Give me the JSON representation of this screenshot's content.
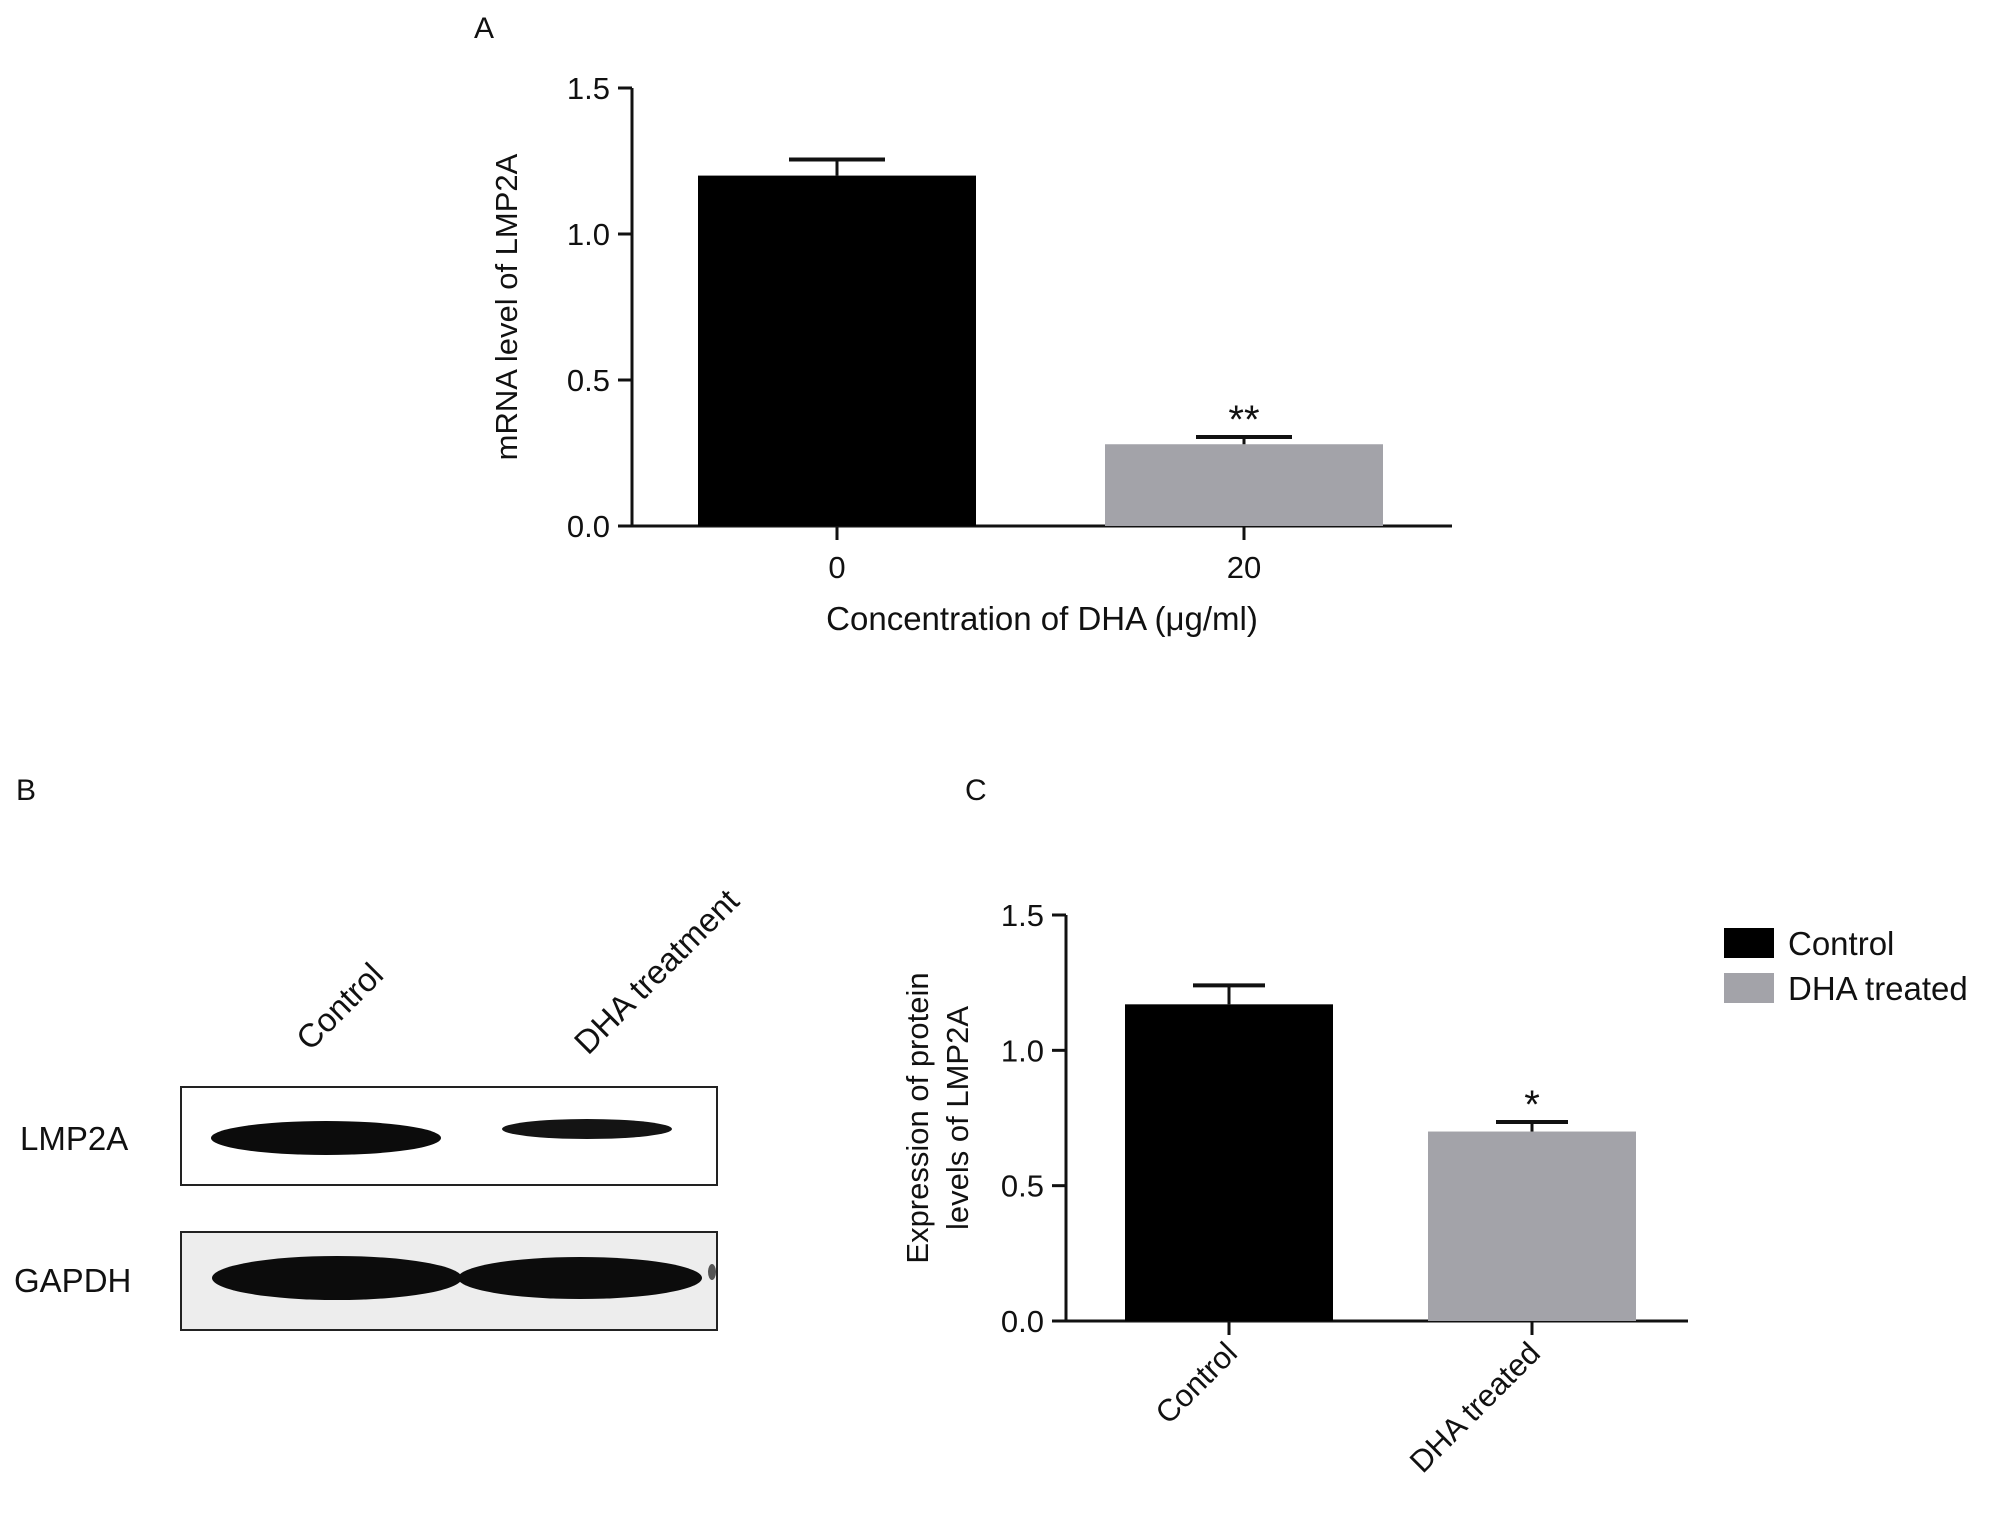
{
  "chart_data": [
    {
      "panel": "A",
      "type": "bar",
      "categories": [
        "0",
        "20"
      ],
      "values": [
        1.2,
        0.28
      ],
      "errors": [
        0.055,
        0.025
      ],
      "significance": [
        "",
        "**"
      ],
      "xlabel": "Concentration of DHA (μg/ml)",
      "ylabel": "mRNA level of LMP2A",
      "ylim": [
        0,
        1.5
      ],
      "yticks": [
        "0.0",
        "0.5",
        "1.0",
        "1.5"
      ],
      "bar_colors": [
        "#000000",
        "#a3a3a9"
      ],
      "grid": false
    },
    {
      "panel": "C",
      "type": "bar",
      "categories": [
        "Control",
        "DHA treated"
      ],
      "values": [
        1.17,
        0.7
      ],
      "errors": [
        0.07,
        0.035
      ],
      "significance": [
        "",
        "*"
      ],
      "ylabel_lines": [
        "Expression of protein",
        "levels of LMP2A"
      ],
      "ylim": [
        0,
        1.5
      ],
      "yticks": [
        "0.0",
        "0.5",
        "1.0",
        "1.5"
      ],
      "bar_colors": [
        "#000000",
        "#a3a3a9"
      ],
      "legend": {
        "placement": "right",
        "entries": [
          {
            "label": "Control",
            "color": "#000000"
          },
          {
            "label": "DHA treated",
            "color": "#a3a3a9"
          }
        ]
      },
      "grid": false
    }
  ],
  "blot": {
    "panel": "B",
    "lanes": [
      "Control",
      "DHA treatment"
    ],
    "rows": [
      {
        "label": "LMP2A",
        "intensity": [
          1.0,
          0.55
        ]
      },
      {
        "label": "GAPDH",
        "intensity": [
          1.0,
          1.0
        ]
      }
    ]
  }
}
